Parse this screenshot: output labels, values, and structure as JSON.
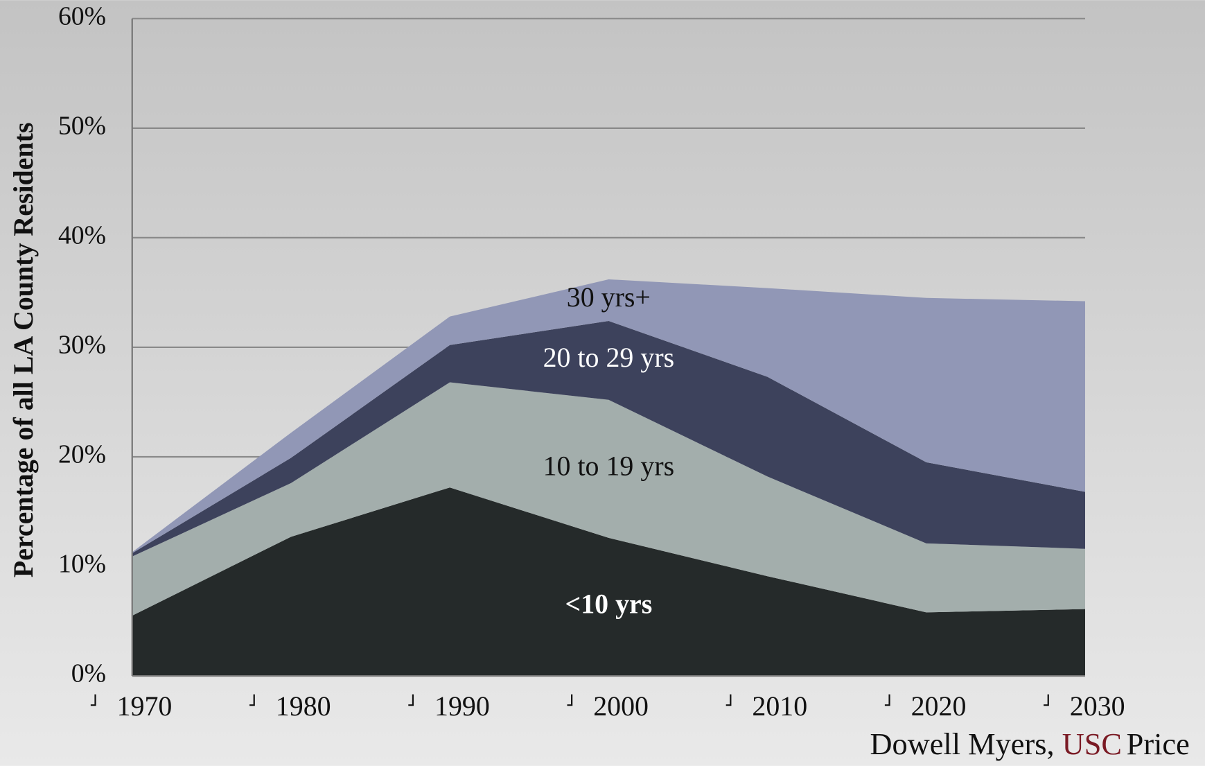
{
  "chart_data": {
    "type": "stacked_area",
    "y_label": "Percentage of all LA County Residents",
    "categories": [
      "1970",
      "1980",
      "1990",
      "2000",
      "2010",
      "2020",
      "2030"
    ],
    "series": [
      {
        "name": "<10 yrs",
        "color": "#252a2a",
        "values": [
          5.5,
          12.7,
          17.2,
          12.6,
          9.1,
          5.8,
          6.1
        ]
      },
      {
        "name": "10 to 19 yrs",
        "color": "#a3aeac",
        "values": [
          5.4,
          4.9,
          9.6,
          12.6,
          9.1,
          6.3,
          5.5
        ]
      },
      {
        "name": "20 to 29 yrs",
        "color": "#3d425c",
        "values": [
          0.3,
          2.3,
          3.4,
          7.2,
          9.1,
          7.4,
          5.2
        ]
      },
      {
        "name": "30 yrs+",
        "color": "#9197b6",
        "values": [
          0.1,
          2.3,
          2.6,
          3.8,
          8.1,
          15.0,
          17.4
        ]
      }
    ],
    "ylim": [
      0,
      60
    ],
    "yticks": [
      {
        "value": 0,
        "label": "0%"
      },
      {
        "value": 10,
        "label": "10%"
      },
      {
        "value": 20,
        "label": "20%"
      },
      {
        "value": 30,
        "label": "30%"
      },
      {
        "value": 40,
        "label": "40%"
      },
      {
        "value": 50,
        "label": "50%"
      },
      {
        "value": 60,
        "label": "60%"
      }
    ],
    "grid": true,
    "source": [
      "Dowell Myers,",
      "USC",
      "Price"
    ]
  }
}
